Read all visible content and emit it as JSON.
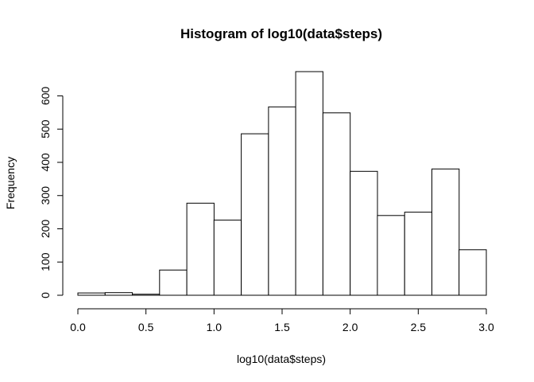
{
  "chart_data": {
    "type": "bar",
    "title": "Histogram of log10(data$steps)",
    "xlabel": "log10(data$steps)",
    "ylabel": "Frequency",
    "bin_edges": [
      0.0,
      0.2,
      0.4,
      0.6,
      0.8,
      1.0,
      1.2,
      1.4,
      1.6,
      1.8,
      2.0,
      2.2,
      2.4,
      2.6,
      2.8,
      3.0
    ],
    "values": [
      7,
      8,
      3,
      76,
      277,
      226,
      486,
      567,
      673,
      549,
      373,
      240,
      250,
      380,
      137
    ],
    "xlim": [
      0,
      3
    ],
    "ylim": [
      0,
      673
    ],
    "x_ticks": [
      "0.0",
      "0.5",
      "1.0",
      "1.5",
      "2.0",
      "2.5",
      "3.0"
    ],
    "y_ticks": [
      "0",
      "100",
      "200",
      "300",
      "400",
      "500",
      "600"
    ],
    "grid": false,
    "bar_fill": "#ffffff",
    "bar_stroke": "#000000"
  }
}
